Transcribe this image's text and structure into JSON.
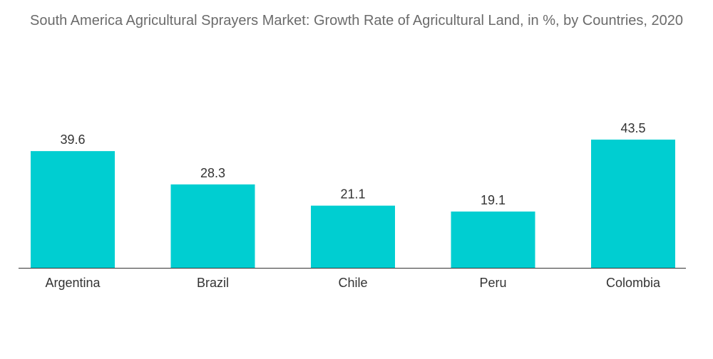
{
  "chart_data": {
    "type": "bar",
    "title": "South America Agricultural Sprayers Market: Growth Rate of Agricultural Land, in %, by Countries, 2020",
    "categories": [
      "Argentina",
      "Brazil",
      "Chile",
      "Peru",
      "Colombia"
    ],
    "values": [
      39.6,
      28.3,
      21.1,
      19.1,
      43.5
    ],
    "value_labels": [
      "39.6",
      "28.3",
      "21.1",
      "19.1",
      "43.5"
    ],
    "xlabel": "",
    "ylabel": "",
    "ylim": [
      0,
      43.5
    ],
    "grid": false,
    "legend": "none",
    "bar_color": "#00CED1",
    "axis_color": "#333333"
  }
}
